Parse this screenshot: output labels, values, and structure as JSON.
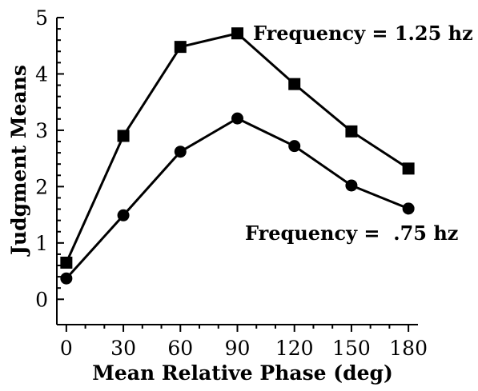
{
  "chart_data": {
    "type": "line",
    "title": "",
    "xlabel": "Mean Relative Phase (deg)",
    "ylabel": "Judgment Means",
    "x": [
      0,
      30,
      60,
      90,
      120,
      150,
      180
    ],
    "xticks": [
      "0",
      "30",
      "60",
      "90",
      "120",
      "150",
      "180"
    ],
    "yticks": [
      "0",
      "1",
      "2",
      "3",
      "4",
      "5"
    ],
    "xlim": [
      -5,
      185
    ],
    "ylim": [
      -0.45,
      5
    ],
    "grid": false,
    "series": [
      {
        "name": "Frequency = 1.25 hz",
        "marker": "square",
        "values": [
          0.65,
          2.9,
          4.48,
          4.72,
          3.82,
          2.98,
          2.32
        ]
      },
      {
        "name": "Frequency =  .75 hz",
        "marker": "circle",
        "values": [
          0.37,
          1.49,
          2.62,
          3.21,
          2.72,
          2.02,
          1.61
        ]
      }
    ],
    "colors": {
      "line": "#000000",
      "marker": "#000000"
    }
  }
}
